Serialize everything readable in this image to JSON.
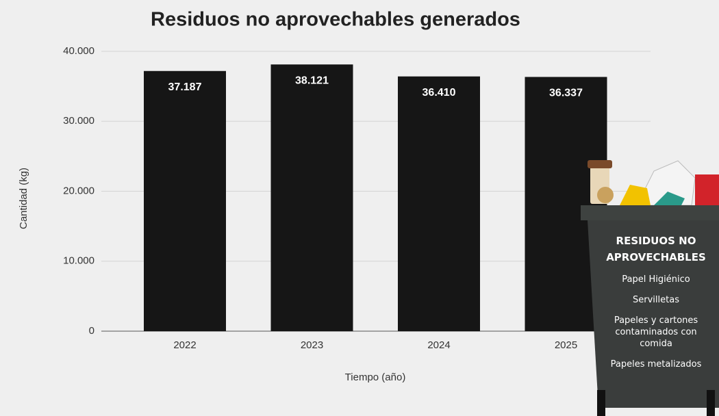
{
  "chart_data": {
    "type": "bar",
    "title": "Residuos no aprovechables generados",
    "x_label": "Tiempo (año)",
    "y_label": "Cantidad (kg)",
    "categories": [
      "2022",
      "2023",
      "2024",
      "2025"
    ],
    "values": [
      37187,
      38121,
      36410,
      36337
    ],
    "value_labels": [
      "37.187",
      "38.121",
      "36.410",
      "36.337"
    ],
    "color": "#161616",
    "ylim": [
      0,
      40000
    ],
    "yticks": [
      0,
      {
        "value": 10000,
        "label": "10.000"
      },
      {
        "value": 20000,
        "label": "20.000"
      },
      {
        "value": 30000,
        "label": "30.000"
      },
      {
        "value": 40000,
        "label": "40.000"
      }
    ],
    "grid": true
  },
  "illustration": {
    "title": "RESIDUOS NO APROVECHABLES",
    "items": [
      "Papel Higiénico",
      "Servilletas",
      "Papeles y cartones contaminados con comida",
      "Papeles metalizados"
    ]
  }
}
